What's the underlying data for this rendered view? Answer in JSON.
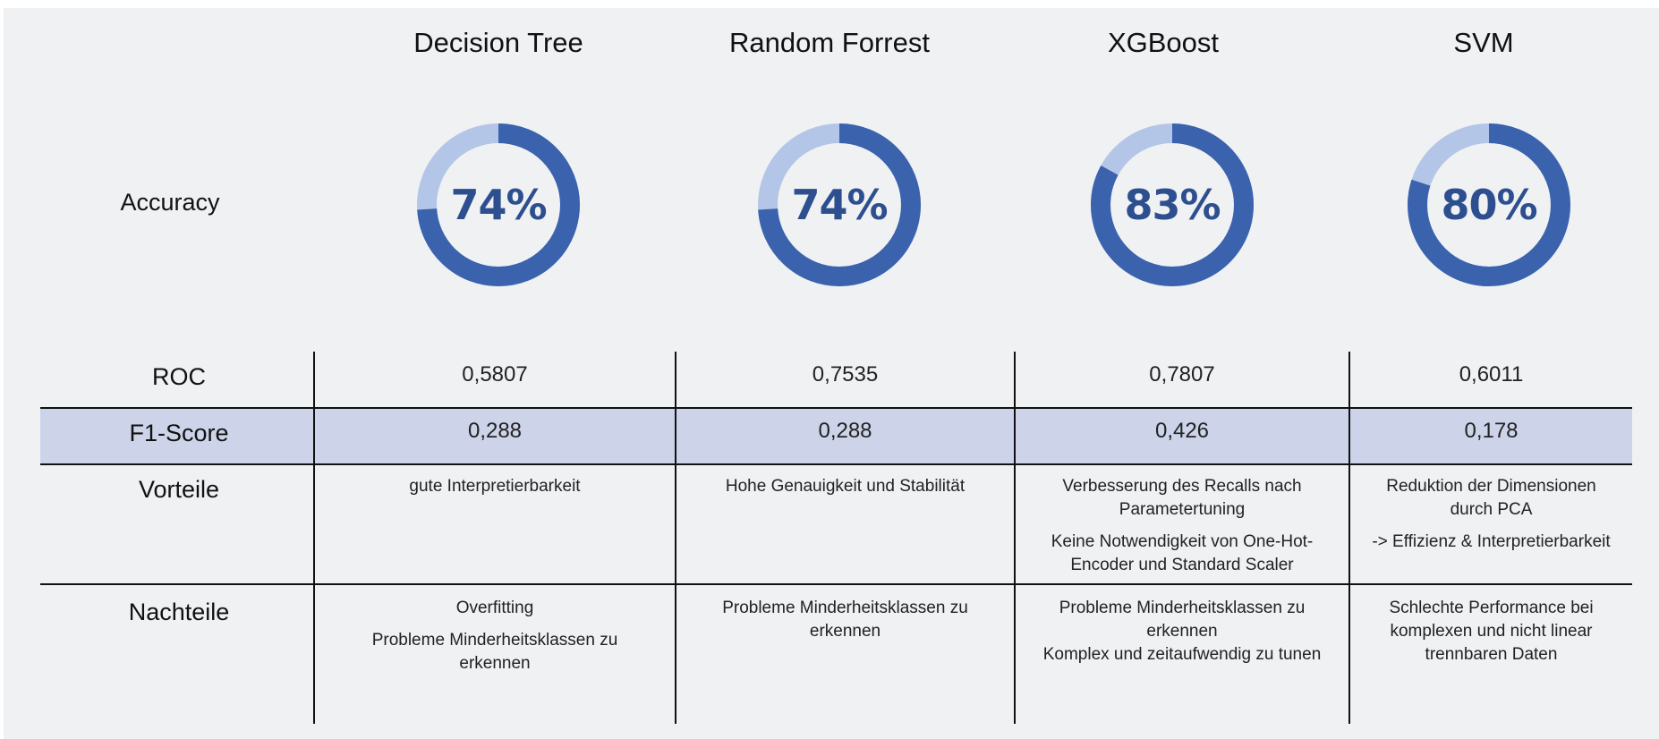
{
  "models": [
    {
      "name": "Decision Tree",
      "accuracy": 74,
      "accuracy_label": "74%",
      "roc": "0,5807",
      "f1": "0,288",
      "vorteile": [
        "gute Interpretierbarkeit"
      ],
      "nachteile": [
        "Overfitting",
        "Probleme Minderheitsklassen zu erkennen"
      ]
    },
    {
      "name": "Random Forrest",
      "accuracy": 74,
      "accuracy_label": "74%",
      "roc": "0,7535",
      "f1": "0,288",
      "vorteile": [
        "Hohe Genauigkeit und Stabilität"
      ],
      "nachteile": [
        "Probleme Minderheitsklassen zu erkennen"
      ]
    },
    {
      "name": "XGBoost",
      "accuracy": 83,
      "accuracy_label": "83%",
      "roc": "0,7807",
      "f1": "0,426",
      "vorteile": [
        "Verbesserung des Recalls nach Parametertuning",
        "Keine Notwendigkeit von One-Hot-Encoder und Standard Scaler"
      ],
      "nachteile": [
        "Probleme Minderheitsklassen zu erkennen",
        "Komplex und zeitaufwendig zu tunen"
      ]
    },
    {
      "name": "SVM",
      "accuracy": 80,
      "accuracy_label": "80%",
      "roc": "0,6011",
      "f1": "0,178",
      "vorteile": [
        "Reduktion der Dimensionen durch PCA",
        "-> Effizienz & Interpretierbarkeit"
      ],
      "nachteile": [
        "Schlechte Performance bei komplexen und nicht linear trennbaren Daten"
      ]
    }
  ],
  "row_labels": {
    "accuracy": "Accuracy",
    "roc": "ROC",
    "f1": "F1-Score",
    "vorteile": "Vorteile",
    "nachteile": "Nachteile"
  },
  "colors": {
    "donut_fill": "#3a62ad",
    "donut_rest": "#b4c6e7",
    "donut_text": "#2e4f8f",
    "f1_band": "#cdd4e9"
  },
  "chart_data": {
    "type": "table",
    "columns": [
      "Decision Tree",
      "Random Forrest",
      "XGBoost",
      "SVM"
    ],
    "rows": [
      {
        "label": "Accuracy",
        "values": [
          "74%",
          "74%",
          "83%",
          "80%"
        ]
      },
      {
        "label": "ROC",
        "values": [
          "0,5807",
          "0,7535",
          "0,7807",
          "0,6011"
        ]
      },
      {
        "label": "F1-Score",
        "values": [
          "0,288",
          "0,288",
          "0,426",
          "0,178"
        ]
      },
      {
        "label": "Vorteile",
        "values": [
          "gute Interpretierbarkeit",
          "Hohe Genauigkeit und Stabilität",
          "Verbesserung des Recalls nach Parametertuning; Keine Notwendigkeit von One-Hot-Encoder und Standard Scaler",
          "Reduktion der Dimensionen durch PCA; -> Effizienz & Interpretierbarkeit"
        ]
      },
      {
        "label": "Nachteile",
        "values": [
          "Overfitting; Probleme Minderheitsklassen zu erkennen",
          "Probleme Minderheitsklassen zu erkennen",
          "Probleme Minderheitsklassen zu erkennen; Komplex und zeitaufwendig zu tunen",
          "Schlechte Performance bei komplexen und nicht linear trennbaren Daten"
        ]
      }
    ],
    "donuts": [
      {
        "name": "Decision Tree",
        "value": 74
      },
      {
        "name": "Random Forrest",
        "value": 74
      },
      {
        "name": "XGBoost",
        "value": 83
      },
      {
        "name": "SVM",
        "value": 80
      }
    ]
  }
}
